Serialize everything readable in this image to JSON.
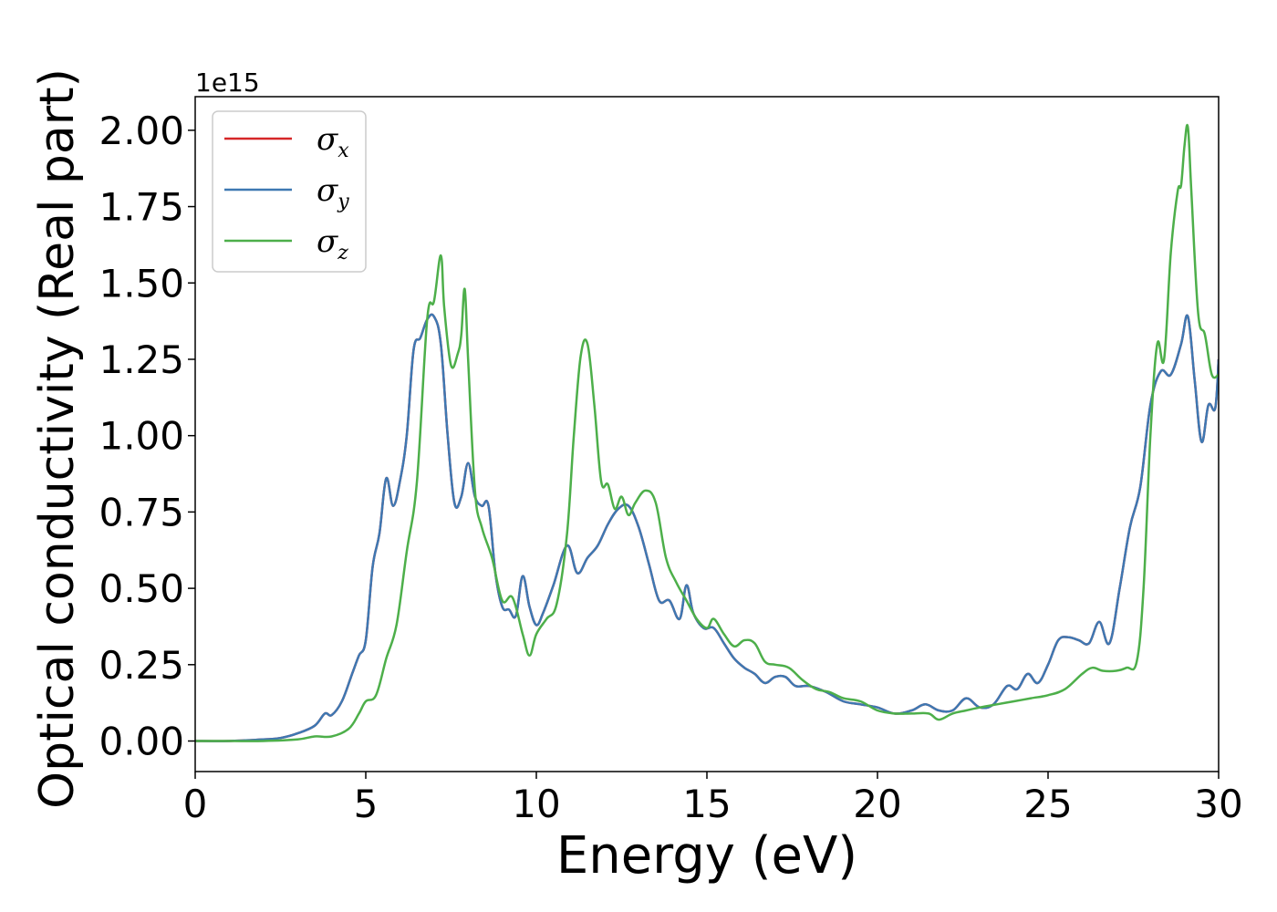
{
  "chart_data": {
    "type": "line",
    "xlabel": "Energy (eV)",
    "ylabel": "Optical conductivity (Real part)",
    "y_offset_label": "1e15",
    "xlim": [
      0,
      30
    ],
    "ylim": [
      -0.1,
      2.11
    ],
    "x_ticks": [
      0,
      5,
      10,
      15,
      20,
      25,
      30
    ],
    "x_tick_labels": [
      "0",
      "5",
      "10",
      "15",
      "20",
      "25",
      "30"
    ],
    "y_ticks": [
      0,
      0.25,
      0.5,
      0.75,
      1.0,
      1.25,
      1.5,
      1.75,
      2.0
    ],
    "y_tick_labels": [
      "0.00",
      "0.25",
      "0.50",
      "0.75",
      "1.00",
      "1.25",
      "1.50",
      "1.75",
      "2.00"
    ],
    "grid": false,
    "legend_position": "top-left",
    "series": [
      {
        "name": "σx",
        "symbol": "σ",
        "subscript": "x",
        "color": "#d62728",
        "x": [
          0,
          1,
          2,
          2.5,
          3,
          3.5,
          3.8,
          4.0,
          4.3,
          4.6,
          4.8,
          5.0,
          5.2,
          5.4,
          5.6,
          5.8,
          6.0,
          6.2,
          6.4,
          6.6,
          6.8,
          7.0,
          7.2,
          7.4,
          7.6,
          7.8,
          8.0,
          8.2,
          8.4,
          8.6,
          8.8,
          9.0,
          9.2,
          9.4,
          9.6,
          9.8,
          10.0,
          10.2,
          10.5,
          10.9,
          11.2,
          11.5,
          11.8,
          12.1,
          12.4,
          12.7,
          13.0,
          13.3,
          13.6,
          13.9,
          14.2,
          14.4,
          14.6,
          14.9,
          15.2,
          15.5,
          15.8,
          16.1,
          16.4,
          16.7,
          17.0,
          17.3,
          17.6,
          18.0,
          18.5,
          19.0,
          19.5,
          20.0,
          20.5,
          21.0,
          21.4,
          21.8,
          22.2,
          22.6,
          23.0,
          23.4,
          23.8,
          24.1,
          24.4,
          24.7,
          25.0,
          25.3,
          25.6,
          25.9,
          26.2,
          26.5,
          26.8,
          27.1,
          27.4,
          27.7,
          28.0,
          28.3,
          28.6,
          28.9,
          29.1,
          29.3,
          29.5,
          29.7,
          29.9,
          30.0
        ],
        "values": [
          0.0,
          0.0,
          0.005,
          0.01,
          0.025,
          0.05,
          0.09,
          0.085,
          0.13,
          0.22,
          0.28,
          0.33,
          0.57,
          0.68,
          0.86,
          0.77,
          0.85,
          1.0,
          1.28,
          1.32,
          1.38,
          1.39,
          1.3,
          1.0,
          0.78,
          0.8,
          0.91,
          0.8,
          0.77,
          0.77,
          0.55,
          0.44,
          0.43,
          0.41,
          0.54,
          0.44,
          0.38,
          0.42,
          0.51,
          0.64,
          0.55,
          0.6,
          0.64,
          0.71,
          0.76,
          0.77,
          0.7,
          0.58,
          0.46,
          0.46,
          0.4,
          0.51,
          0.42,
          0.37,
          0.37,
          0.32,
          0.27,
          0.24,
          0.22,
          0.19,
          0.21,
          0.21,
          0.18,
          0.18,
          0.16,
          0.13,
          0.12,
          0.11,
          0.09,
          0.1,
          0.12,
          0.1,
          0.1,
          0.14,
          0.11,
          0.12,
          0.18,
          0.17,
          0.22,
          0.19,
          0.25,
          0.33,
          0.34,
          0.33,
          0.32,
          0.39,
          0.32,
          0.5,
          0.7,
          0.83,
          1.1,
          1.21,
          1.2,
          1.3,
          1.39,
          1.18,
          0.98,
          1.1,
          1.09,
          1.25
        ]
      },
      {
        "name": "σy",
        "symbol": "σ",
        "subscript": "y",
        "color": "#3e78b2",
        "x": [
          0,
          1,
          2,
          2.5,
          3,
          3.5,
          3.8,
          4.0,
          4.3,
          4.6,
          4.8,
          5.0,
          5.2,
          5.4,
          5.6,
          5.8,
          6.0,
          6.2,
          6.4,
          6.6,
          6.8,
          7.0,
          7.2,
          7.4,
          7.6,
          7.8,
          8.0,
          8.2,
          8.4,
          8.6,
          8.8,
          9.0,
          9.2,
          9.4,
          9.6,
          9.8,
          10.0,
          10.2,
          10.5,
          10.9,
          11.2,
          11.5,
          11.8,
          12.1,
          12.4,
          12.7,
          13.0,
          13.3,
          13.6,
          13.9,
          14.2,
          14.4,
          14.6,
          14.9,
          15.2,
          15.5,
          15.8,
          16.1,
          16.4,
          16.7,
          17.0,
          17.3,
          17.6,
          18.0,
          18.5,
          19.0,
          19.5,
          20.0,
          20.5,
          21.0,
          21.4,
          21.8,
          22.2,
          22.6,
          23.0,
          23.4,
          23.8,
          24.1,
          24.4,
          24.7,
          25.0,
          25.3,
          25.6,
          25.9,
          26.2,
          26.5,
          26.8,
          27.1,
          27.4,
          27.7,
          28.0,
          28.3,
          28.6,
          28.9,
          29.1,
          29.3,
          29.5,
          29.7,
          29.9,
          30.0
        ],
        "values": [
          0.0,
          0.0,
          0.005,
          0.01,
          0.025,
          0.05,
          0.09,
          0.085,
          0.13,
          0.22,
          0.28,
          0.33,
          0.57,
          0.68,
          0.86,
          0.77,
          0.85,
          1.0,
          1.28,
          1.32,
          1.38,
          1.39,
          1.3,
          1.0,
          0.78,
          0.8,
          0.91,
          0.8,
          0.77,
          0.77,
          0.55,
          0.44,
          0.43,
          0.41,
          0.54,
          0.44,
          0.38,
          0.42,
          0.51,
          0.64,
          0.55,
          0.6,
          0.64,
          0.71,
          0.76,
          0.77,
          0.7,
          0.58,
          0.46,
          0.46,
          0.4,
          0.51,
          0.42,
          0.37,
          0.37,
          0.32,
          0.27,
          0.24,
          0.22,
          0.19,
          0.21,
          0.21,
          0.18,
          0.18,
          0.16,
          0.13,
          0.12,
          0.11,
          0.09,
          0.1,
          0.12,
          0.1,
          0.1,
          0.14,
          0.11,
          0.12,
          0.18,
          0.17,
          0.22,
          0.19,
          0.25,
          0.33,
          0.34,
          0.33,
          0.32,
          0.39,
          0.32,
          0.5,
          0.7,
          0.83,
          1.1,
          1.21,
          1.2,
          1.3,
          1.39,
          1.18,
          0.98,
          1.1,
          1.09,
          1.25
        ]
      },
      {
        "name": "σz",
        "symbol": "σ",
        "subscript": "z",
        "color": "#4daf4a",
        "x": [
          0,
          1,
          2,
          3,
          3.5,
          4.0,
          4.5,
          4.8,
          5.0,
          5.3,
          5.6,
          5.9,
          6.2,
          6.5,
          6.8,
          7.0,
          7.2,
          7.3,
          7.5,
          7.7,
          7.8,
          7.9,
          8.0,
          8.2,
          8.4,
          8.7,
          9.0,
          9.3,
          9.6,
          9.8,
          10.0,
          10.3,
          10.6,
          10.9,
          11.1,
          11.3,
          11.5,
          11.7,
          11.9,
          12.1,
          12.3,
          12.5,
          12.7,
          12.9,
          13.2,
          13.5,
          13.8,
          14.1,
          14.4,
          14.7,
          15.0,
          15.2,
          15.5,
          15.8,
          16.1,
          16.4,
          16.7,
          17.0,
          17.4,
          17.8,
          18.2,
          18.6,
          19.0,
          19.5,
          20.0,
          20.5,
          21.0,
          21.5,
          21.8,
          22.2,
          22.6,
          23.0,
          23.5,
          24.0,
          24.5,
          25.0,
          25.5,
          26.0,
          26.3,
          26.6,
          27.0,
          27.3,
          27.6,
          27.8,
          28.0,
          28.2,
          28.4,
          28.6,
          28.8,
          28.9,
          29.0,
          29.1,
          29.2,
          29.4,
          29.6,
          29.8,
          30.0
        ],
        "values": [
          0.0,
          0.0,
          0.0,
          0.005,
          0.015,
          0.015,
          0.04,
          0.09,
          0.13,
          0.15,
          0.27,
          0.38,
          0.62,
          0.85,
          1.38,
          1.44,
          1.59,
          1.42,
          1.23,
          1.27,
          1.33,
          1.48,
          1.25,
          0.82,
          0.7,
          0.6,
          0.46,
          0.47,
          0.35,
          0.28,
          0.35,
          0.4,
          0.45,
          0.68,
          1.0,
          1.26,
          1.3,
          1.1,
          0.85,
          0.84,
          0.76,
          0.8,
          0.74,
          0.78,
          0.82,
          0.78,
          0.6,
          0.52,
          0.46,
          0.4,
          0.37,
          0.4,
          0.35,
          0.31,
          0.33,
          0.32,
          0.26,
          0.25,
          0.24,
          0.2,
          0.17,
          0.16,
          0.14,
          0.13,
          0.1,
          0.09,
          0.09,
          0.09,
          0.07,
          0.09,
          0.1,
          0.11,
          0.12,
          0.13,
          0.14,
          0.15,
          0.17,
          0.22,
          0.24,
          0.23,
          0.23,
          0.24,
          0.26,
          0.5,
          1.0,
          1.3,
          1.25,
          1.6,
          1.8,
          1.82,
          1.95,
          2.01,
          1.8,
          1.4,
          1.33,
          1.2,
          1.2
        ]
      }
    ]
  }
}
